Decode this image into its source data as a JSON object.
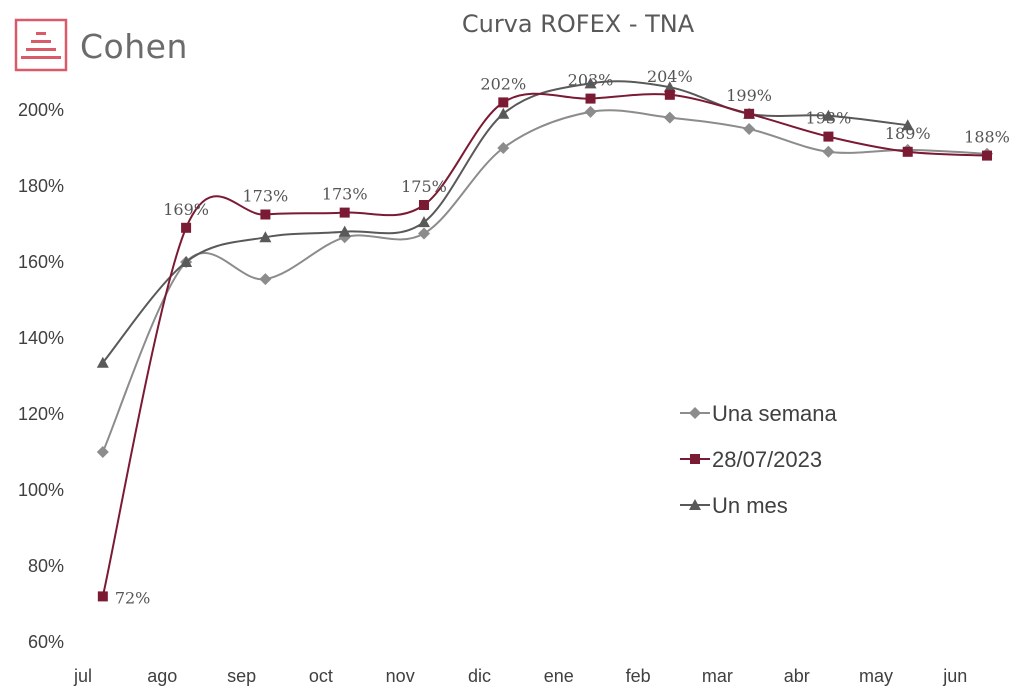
{
  "brand": {
    "name": "Cohen",
    "tm": "™",
    "icon": "cohen-stacked-lines-logo",
    "accent": "#d95b6a"
  },
  "chart_data": {
    "type": "line",
    "title": "Curva ROFEX - TNA",
    "xlabel": "",
    "ylabel": "",
    "ylim": [
      60,
      200
    ],
    "y_ticks": [
      60,
      80,
      100,
      120,
      140,
      160,
      180,
      200
    ],
    "y_tick_labels": [
      "60%",
      "80%",
      "100%",
      "120%",
      "140%",
      "160%",
      "180%",
      "200%"
    ],
    "categories": [
      "jul",
      "ago",
      "sep",
      "oct",
      "nov",
      "dic",
      "ene",
      "feb",
      "mar",
      "abr",
      "may",
      "jun"
    ],
    "legend_position": "right-center",
    "grid": false,
    "series": [
      {
        "name": "Una semana",
        "color": "#8c8c8c",
        "marker": "diamond",
        "x": [
          0.25,
          1.3,
          2.3,
          3.3,
          4.3,
          5.3,
          6.4,
          7.4,
          8.4,
          9.4,
          10.4,
          11.4
        ],
        "values": [
          110,
          160,
          155.5,
          166.5,
          167.5,
          190,
          199.5,
          198,
          195,
          189,
          189.5,
          188.5
        ],
        "labels": []
      },
      {
        "name": "28/07/2023",
        "color": "#7b1a33",
        "marker": "square",
        "x": [
          0.25,
          1.3,
          2.3,
          3.3,
          4.3,
          5.3,
          6.4,
          7.4,
          8.4,
          9.4,
          10.4,
          11.4
        ],
        "values": [
          72,
          169,
          172.5,
          173,
          175,
          202,
          203,
          204,
          199,
          193,
          189,
          188
        ],
        "labels": [
          "72%",
          "169%",
          "173%",
          "173%",
          "175%",
          "202%",
          "203%",
          "204%",
          "199%",
          "193%",
          "189%",
          "188%"
        ]
      },
      {
        "name": "Un mes",
        "color": "#595959",
        "marker": "triangle",
        "x": [
          0.25,
          1.3,
          2.3,
          3.3,
          4.3,
          5.3,
          6.4,
          7.4,
          8.4,
          9.4,
          10.4
        ],
        "values": [
          133.5,
          160,
          166.5,
          168,
          170.5,
          199,
          207,
          206,
          199,
          198.5,
          196
        ],
        "labels": []
      }
    ]
  }
}
